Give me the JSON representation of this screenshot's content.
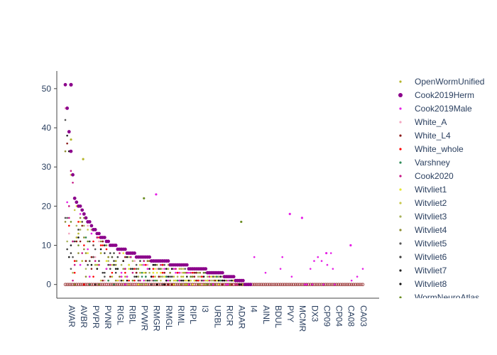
{
  "chart_data": {
    "type": "scatter",
    "x_categories": [
      "AVAR",
      "AVBR",
      "PVPR",
      "PVNR",
      "RIGL",
      "RIBL",
      "PVWR",
      "RMGR",
      "RMGL",
      "RIML",
      "RIPL",
      "I3",
      "URBL",
      "RICR",
      "ADAR",
      "I4",
      "AINL",
      "BDUL",
      "PVY",
      "MCMR",
      "DX3",
      "CP09",
      "CP04",
      "CA08",
      "CA03"
    ],
    "y_ticks": [
      0,
      10,
      20,
      30,
      40,
      50
    ],
    "ylim": [
      -3.5,
      54.5
    ],
    "series": [
      {
        "name": "OpenWormUnified",
        "color": "#b5b52a",
        "symbol": "dot"
      },
      {
        "name": "Cook2019Herm",
        "color": "#8b008b",
        "symbol": "dot-large"
      },
      {
        "name": "Cook2019Male",
        "color": "#e61ee6",
        "symbol": "dot"
      },
      {
        "name": "White_A",
        "color": "#f4a6c0",
        "symbol": "dot"
      },
      {
        "name": "White_L4",
        "color": "#8b1a1a",
        "symbol": "dot"
      },
      {
        "name": "White_whole",
        "color": "#ff0000",
        "symbol": "dot"
      },
      {
        "name": "Varshney",
        "color": "#2e8b57",
        "symbol": "dot"
      },
      {
        "name": "Cook2020",
        "color": "#c71585",
        "symbol": "dot"
      },
      {
        "name": "Witvliet1",
        "color": "#e6e62e",
        "symbol": "dot"
      },
      {
        "name": "Witvliet2",
        "color": "#c8c84b",
        "symbol": "dot"
      },
      {
        "name": "Witvliet3",
        "color": "#a8b25a",
        "symbol": "dot"
      },
      {
        "name": "Witvliet4",
        "color": "#8c8c30",
        "symbol": "dot"
      },
      {
        "name": "Witvliet5",
        "color": "#555555",
        "symbol": "dot"
      },
      {
        "name": "Witvliet6",
        "color": "#3c3c3c",
        "symbol": "dot"
      },
      {
        "name": "Witvliet7",
        "color": "#222222",
        "symbol": "dot"
      },
      {
        "name": "Witvliet8",
        "color": "#111111",
        "symbol": "dot"
      },
      {
        "name": "WormNeuroAtlas",
        "color": "#6b8e23",
        "symbol": "dot"
      }
    ],
    "cook2019herm_envelope": [
      [
        0,
        51
      ],
      [
        5,
        22
      ],
      [
        15,
        14
      ],
      [
        25,
        10
      ],
      [
        40,
        7
      ],
      [
        50,
        6
      ],
      [
        60,
        5
      ],
      [
        70,
        4
      ],
      [
        80,
        3
      ],
      [
        88,
        2
      ],
      [
        95,
        0.5
      ],
      [
        160,
        0
      ]
    ],
    "notable_points": [
      {
        "series": "Cook2019Herm",
        "x_index": 0,
        "y": 51
      },
      {
        "series": "OpenWormUnified",
        "x_index": 0,
        "y": 37
      },
      {
        "series": "OpenWormUnified",
        "x_index": 1,
        "y": 32
      },
      {
        "series": "Cook2019Male",
        "x_index": 7,
        "y": 23
      },
      {
        "series": "WormNeuroAtlas",
        "x_index": 6,
        "y": 22
      },
      {
        "series": "WormNeuroAtlas",
        "x_index": 14,
        "y": 16
      },
      {
        "series": "Cook2019Male",
        "x_index": 18,
        "y": 18
      },
      {
        "series": "Cook2019Male",
        "x_index": 19,
        "y": 17
      },
      {
        "series": "Cook2019Male",
        "x_index": 21,
        "y": 8
      },
      {
        "series": "Cook2019Male",
        "x_index": 23,
        "y": 10
      }
    ],
    "legend_position": "right",
    "title": "",
    "xlabel": "",
    "ylabel": "",
    "grid": false
  }
}
